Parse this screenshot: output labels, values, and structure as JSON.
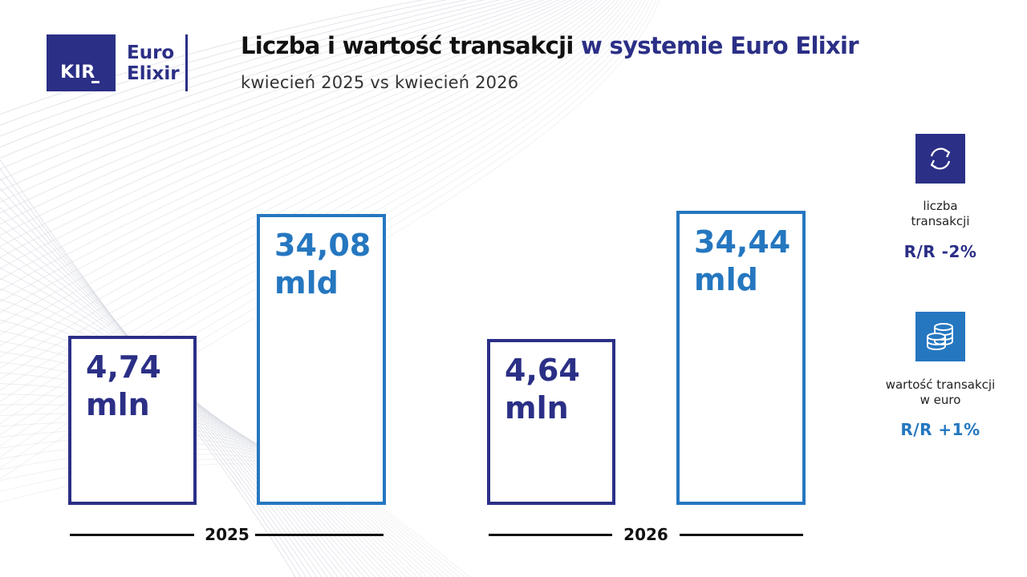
{
  "logo": {
    "kir": "KIR",
    "line1": "Euro",
    "line2": "Elixir"
  },
  "title_part1": "Liczba i wartość transakcji",
  "title_part2": "w systemie Euro Elixir",
  "subtitle": "kwiecień 2025 vs kwiecień 2026",
  "colors": {
    "navy": "#2b2f86",
    "blue": "#2577c0"
  },
  "chart_data": {
    "type": "bar",
    "categories": [
      "2025",
      "2026"
    ],
    "series": [
      {
        "name": "liczba transakcji",
        "unit": "mln",
        "values": [
          4.74,
          4.64
        ],
        "labels": [
          "4,74",
          "4,64"
        ]
      },
      {
        "name": "wartość transakcji w euro",
        "unit": "mld",
        "values": [
          34.08,
          34.44
        ],
        "labels": [
          "34,08",
          "34,44"
        ]
      }
    ]
  },
  "kpis": [
    {
      "icon": "exchange-arrows-icon",
      "caption_line1": "liczba",
      "caption_line2": "transakcji",
      "value": "R/R -2%"
    },
    {
      "icon": "coin-stack-icon",
      "caption_line1": "wartość transakcji",
      "caption_line2": "w euro",
      "value": "R/R +1%"
    }
  ]
}
